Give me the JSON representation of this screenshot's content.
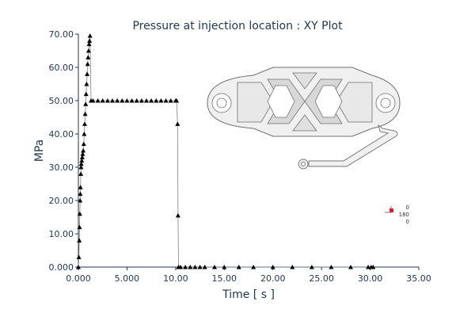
{
  "chart_data": {
    "type": "line",
    "title": "Pressure at injection location : XY Plot",
    "xlabel": "Time [ s ]",
    "ylabel": "MPa",
    "xlim": [
      0,
      35
    ],
    "ylim": [
      0,
      70
    ],
    "xticks": [
      "0.000",
      "5.000",
      "10.00",
      "15.00",
      "20.00",
      "25.00",
      "30.00",
      "35.00"
    ],
    "yticks": [
      "0.000",
      "10.00",
      "20.00",
      "30.00",
      "40.00",
      "50.00",
      "60.00",
      "70.00"
    ],
    "grid": false,
    "marker": "triangle",
    "series": [
      {
        "x": [
          0.0,
          0.05,
          0.1,
          0.12,
          0.15,
          0.18,
          0.2,
          0.22,
          0.25,
          0.28,
          0.3,
          0.35,
          0.4,
          0.45,
          0.5,
          0.55,
          0.6,
          0.65,
          0.7,
          0.75,
          0.8,
          0.85,
          0.9,
          0.95,
          1.0,
          1.05,
          1.1,
          1.15,
          1.2,
          1.3,
          1.5,
          2.0,
          2.5,
          3.0,
          3.5,
          4.0,
          4.5,
          5.0,
          5.5,
          6.0,
          6.5,
          7.0,
          7.5,
          8.0,
          8.5,
          9.0,
          9.5,
          10.0,
          10.1,
          10.2,
          10.25,
          10.3,
          10.5,
          11.0,
          11.5,
          12.0,
          12.5,
          13.0,
          14.0,
          15.0,
          16.5,
          18.0,
          20.0,
          22.0,
          24.0,
          26.0,
          28.0,
          29.8,
          30.1,
          30.3
        ],
        "y": [
          0.0,
          3.0,
          8.0,
          12.0,
          16.0,
          20.0,
          22.0,
          24.0,
          28.0,
          30.0,
          31.0,
          32.0,
          33.0,
          34.0,
          35.0,
          37.0,
          40.0,
          43.0,
          46.0,
          49.0,
          52.0,
          55.0,
          58.0,
          61.0,
          63.0,
          65.0,
          67.0,
          68.0,
          69.5,
          50.0,
          50.0,
          50.0,
          50.0,
          50.0,
          50.0,
          50.0,
          50.0,
          50.0,
          50.0,
          50.0,
          50.0,
          50.0,
          50.0,
          50.0,
          50.0,
          50.0,
          50.0,
          50.0,
          50.0,
          43.0,
          15.5,
          0.0,
          0.0,
          0.0,
          0.0,
          0.0,
          0.0,
          0.0,
          0.0,
          0.0,
          0.0,
          0.0,
          0.0,
          0.0,
          0.0,
          0.0,
          0.0,
          0.0,
          0.0,
          0.0
        ]
      }
    ],
    "colors": {
      "text": "#1f3550",
      "line": "#808080",
      "marker": "#000000",
      "triad_accent": "#e02020"
    },
    "inset_triad_labels": [
      "0",
      "180",
      "0"
    ]
  }
}
